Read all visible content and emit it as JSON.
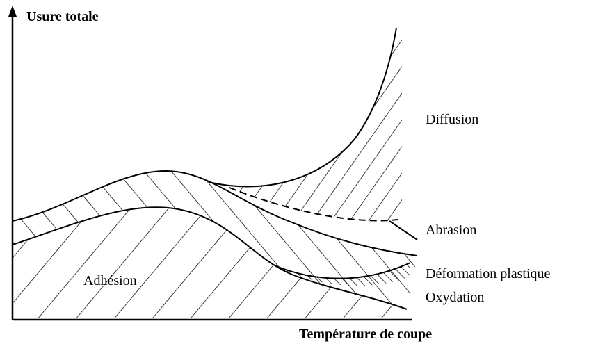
{
  "axes": {
    "y_label": "Usure totale",
    "x_label": "Température de coupe"
  },
  "regions": [
    {
      "label": "Diffusion"
    },
    {
      "label": "Abrasion"
    },
    {
      "label": "Adhésion"
    },
    {
      "label": "Déformation plastique"
    },
    {
      "label": "Oxydation"
    }
  ]
}
